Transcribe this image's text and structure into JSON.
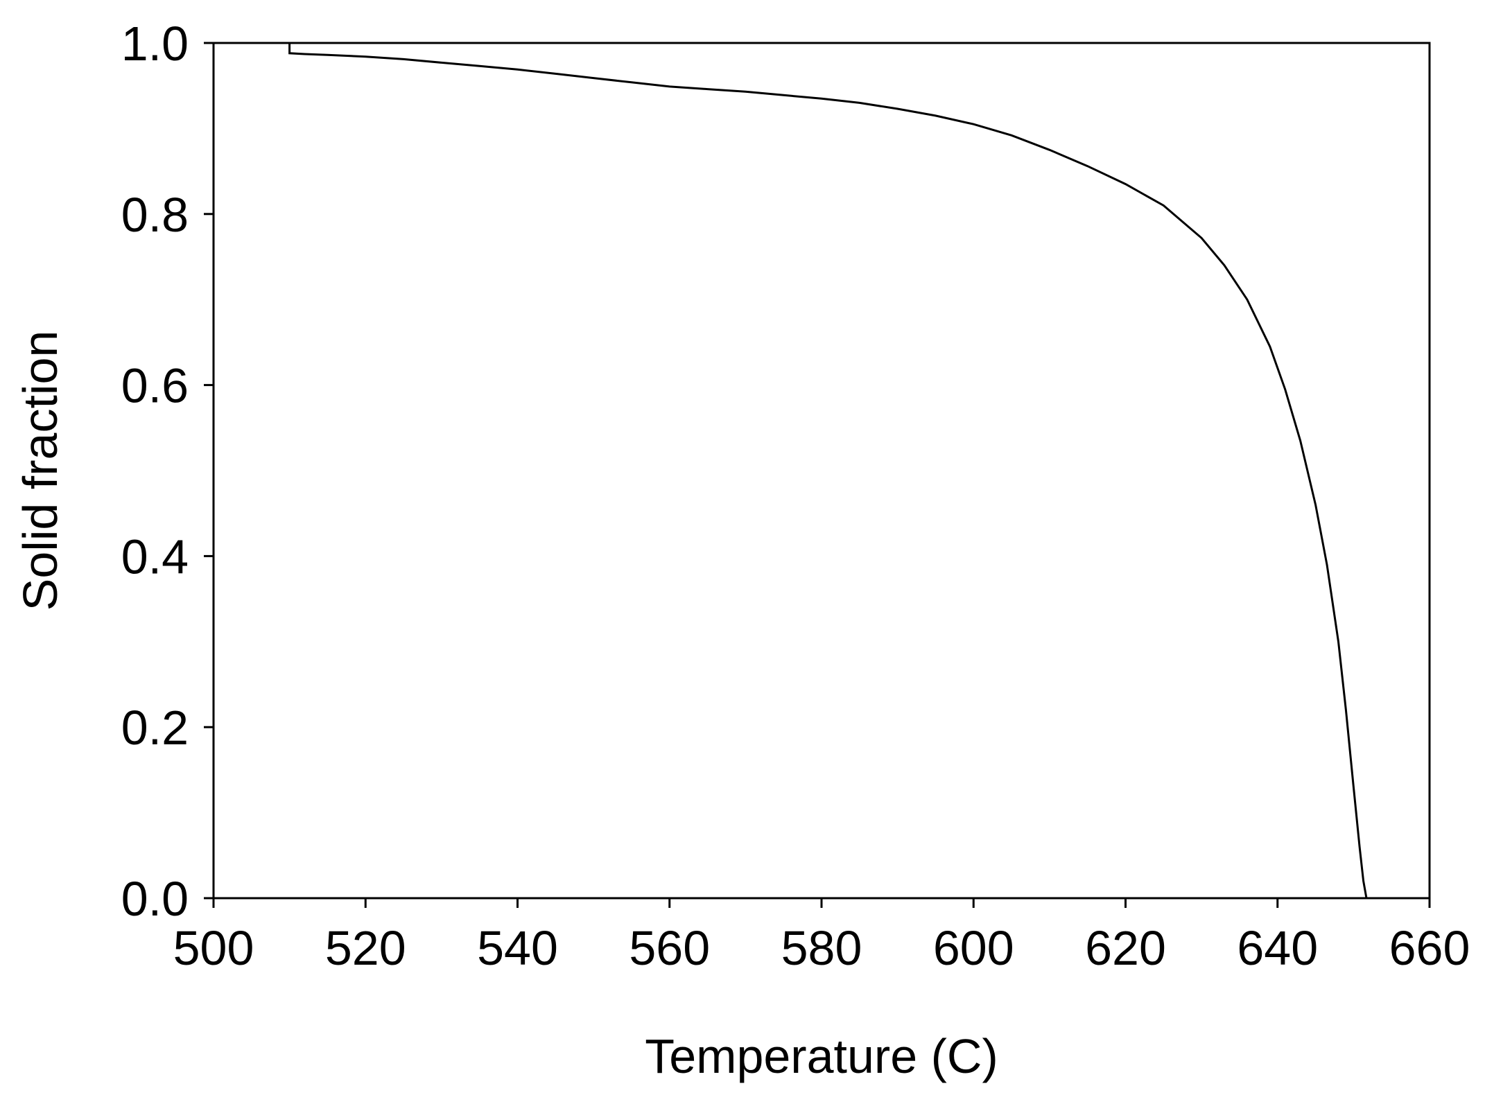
{
  "chart_data": {
    "type": "line",
    "xlabel": "Temperature (C)",
    "ylabel": "Solid fraction",
    "xlim": [
      500,
      660
    ],
    "ylim": [
      0.0,
      1.0
    ],
    "xticks": [
      500,
      520,
      540,
      560,
      580,
      600,
      620,
      640,
      660
    ],
    "xtick_labels": [
      "500",
      "520",
      "540",
      "560",
      "580",
      "600",
      "620",
      "640",
      "660"
    ],
    "yticks": [
      0.0,
      0.2,
      0.4,
      0.6,
      0.8,
      1.0
    ],
    "ytick_labels": [
      "0.0",
      "0.2",
      "0.4",
      "0.6",
      "0.8",
      "1.0"
    ],
    "grid": false,
    "line_color": "#000000",
    "series": [
      {
        "x": [
          510.0,
          510.0,
          512,
          515,
          520,
          525,
          530,
          535,
          540,
          545,
          550,
          555,
          560,
          565,
          570,
          575,
          580,
          585,
          590,
          595,
          600,
          605,
          610,
          615,
          620,
          625,
          630,
          633,
          636,
          639,
          641,
          643,
          645,
          646.5,
          648,
          649,
          650,
          650.8,
          651.3,
          651.7
        ],
        "y": [
          1.0,
          0.988,
          0.987,
          0.986,
          0.984,
          0.981,
          0.977,
          0.973,
          0.969,
          0.964,
          0.959,
          0.954,
          0.949,
          0.946,
          0.943,
          0.939,
          0.935,
          0.93,
          0.923,
          0.915,
          0.905,
          0.892,
          0.875,
          0.856,
          0.835,
          0.81,
          0.772,
          0.74,
          0.7,
          0.645,
          0.595,
          0.535,
          0.46,
          0.39,
          0.3,
          0.22,
          0.13,
          0.06,
          0.02,
          0.0
        ]
      }
    ]
  }
}
